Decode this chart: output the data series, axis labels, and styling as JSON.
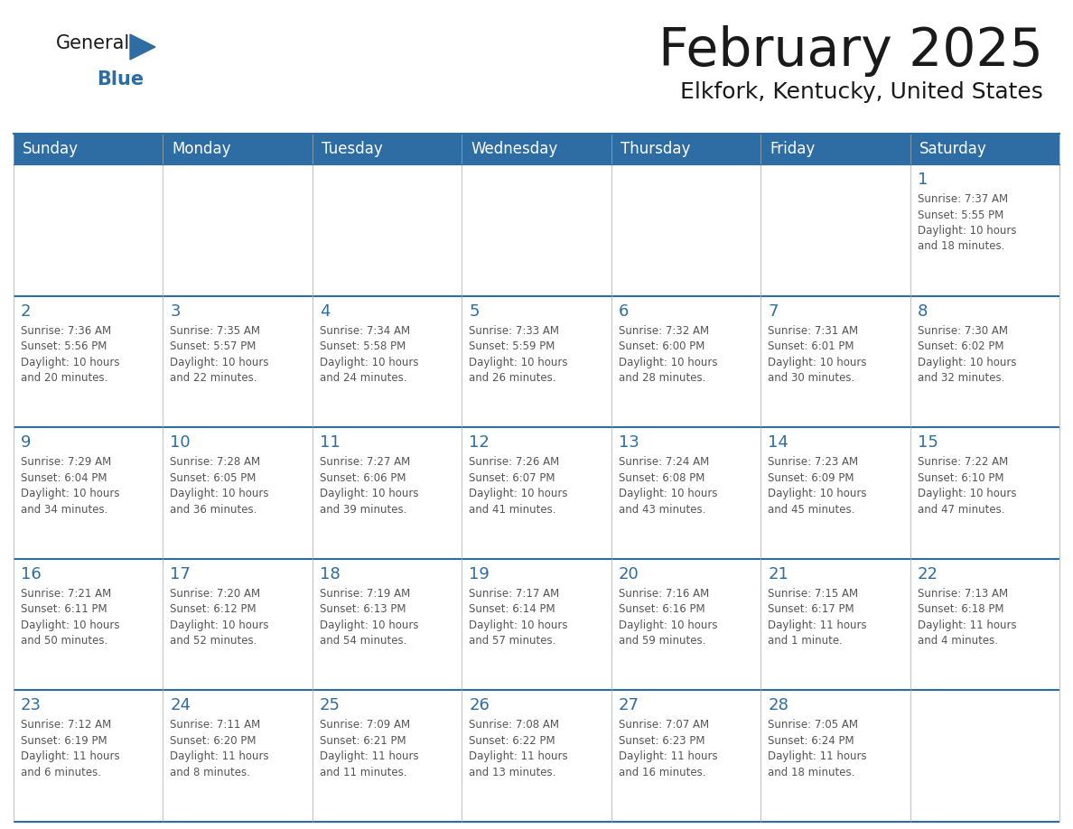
{
  "title": "February 2025",
  "subtitle": "Elkfork, Kentucky, United States",
  "days_of_week": [
    "Sunday",
    "Monday",
    "Tuesday",
    "Wednesday",
    "Thursday",
    "Friday",
    "Saturday"
  ],
  "header_bg": "#2E6DA4",
  "header_text": "#FFFFFF",
  "divider_color": "#2E6DA4",
  "text_color": "#555555",
  "day_num_color": "#2E6DA4",
  "logo_general_color": "#1a1a1a",
  "logo_blue_color": "#2E6DA4",
  "weeks": [
    [
      {
        "day": null,
        "info": null
      },
      {
        "day": null,
        "info": null
      },
      {
        "day": null,
        "info": null
      },
      {
        "day": null,
        "info": null
      },
      {
        "day": null,
        "info": null
      },
      {
        "day": null,
        "info": null
      },
      {
        "day": 1,
        "info": "Sunrise: 7:37 AM\nSunset: 5:55 PM\nDaylight: 10 hours\nand 18 minutes."
      }
    ],
    [
      {
        "day": 2,
        "info": "Sunrise: 7:36 AM\nSunset: 5:56 PM\nDaylight: 10 hours\nand 20 minutes."
      },
      {
        "day": 3,
        "info": "Sunrise: 7:35 AM\nSunset: 5:57 PM\nDaylight: 10 hours\nand 22 minutes."
      },
      {
        "day": 4,
        "info": "Sunrise: 7:34 AM\nSunset: 5:58 PM\nDaylight: 10 hours\nand 24 minutes."
      },
      {
        "day": 5,
        "info": "Sunrise: 7:33 AM\nSunset: 5:59 PM\nDaylight: 10 hours\nand 26 minutes."
      },
      {
        "day": 6,
        "info": "Sunrise: 7:32 AM\nSunset: 6:00 PM\nDaylight: 10 hours\nand 28 minutes."
      },
      {
        "day": 7,
        "info": "Sunrise: 7:31 AM\nSunset: 6:01 PM\nDaylight: 10 hours\nand 30 minutes."
      },
      {
        "day": 8,
        "info": "Sunrise: 7:30 AM\nSunset: 6:02 PM\nDaylight: 10 hours\nand 32 minutes."
      }
    ],
    [
      {
        "day": 9,
        "info": "Sunrise: 7:29 AM\nSunset: 6:04 PM\nDaylight: 10 hours\nand 34 minutes."
      },
      {
        "day": 10,
        "info": "Sunrise: 7:28 AM\nSunset: 6:05 PM\nDaylight: 10 hours\nand 36 minutes."
      },
      {
        "day": 11,
        "info": "Sunrise: 7:27 AM\nSunset: 6:06 PM\nDaylight: 10 hours\nand 39 minutes."
      },
      {
        "day": 12,
        "info": "Sunrise: 7:26 AM\nSunset: 6:07 PM\nDaylight: 10 hours\nand 41 minutes."
      },
      {
        "day": 13,
        "info": "Sunrise: 7:24 AM\nSunset: 6:08 PM\nDaylight: 10 hours\nand 43 minutes."
      },
      {
        "day": 14,
        "info": "Sunrise: 7:23 AM\nSunset: 6:09 PM\nDaylight: 10 hours\nand 45 minutes."
      },
      {
        "day": 15,
        "info": "Sunrise: 7:22 AM\nSunset: 6:10 PM\nDaylight: 10 hours\nand 47 minutes."
      }
    ],
    [
      {
        "day": 16,
        "info": "Sunrise: 7:21 AM\nSunset: 6:11 PM\nDaylight: 10 hours\nand 50 minutes."
      },
      {
        "day": 17,
        "info": "Sunrise: 7:20 AM\nSunset: 6:12 PM\nDaylight: 10 hours\nand 52 minutes."
      },
      {
        "day": 18,
        "info": "Sunrise: 7:19 AM\nSunset: 6:13 PM\nDaylight: 10 hours\nand 54 minutes."
      },
      {
        "day": 19,
        "info": "Sunrise: 7:17 AM\nSunset: 6:14 PM\nDaylight: 10 hours\nand 57 minutes."
      },
      {
        "day": 20,
        "info": "Sunrise: 7:16 AM\nSunset: 6:16 PM\nDaylight: 10 hours\nand 59 minutes."
      },
      {
        "day": 21,
        "info": "Sunrise: 7:15 AM\nSunset: 6:17 PM\nDaylight: 11 hours\nand 1 minute."
      },
      {
        "day": 22,
        "info": "Sunrise: 7:13 AM\nSunset: 6:18 PM\nDaylight: 11 hours\nand 4 minutes."
      }
    ],
    [
      {
        "day": 23,
        "info": "Sunrise: 7:12 AM\nSunset: 6:19 PM\nDaylight: 11 hours\nand 6 minutes."
      },
      {
        "day": 24,
        "info": "Sunrise: 7:11 AM\nSunset: 6:20 PM\nDaylight: 11 hours\nand 8 minutes."
      },
      {
        "day": 25,
        "info": "Sunrise: 7:09 AM\nSunset: 6:21 PM\nDaylight: 11 hours\nand 11 minutes."
      },
      {
        "day": 26,
        "info": "Sunrise: 7:08 AM\nSunset: 6:22 PM\nDaylight: 11 hours\nand 13 minutes."
      },
      {
        "day": 27,
        "info": "Sunrise: 7:07 AM\nSunset: 6:23 PM\nDaylight: 11 hours\nand 16 minutes."
      },
      {
        "day": 28,
        "info": "Sunrise: 7:05 AM\nSunset: 6:24 PM\nDaylight: 11 hours\nand 18 minutes."
      },
      {
        "day": null,
        "info": null
      }
    ]
  ]
}
